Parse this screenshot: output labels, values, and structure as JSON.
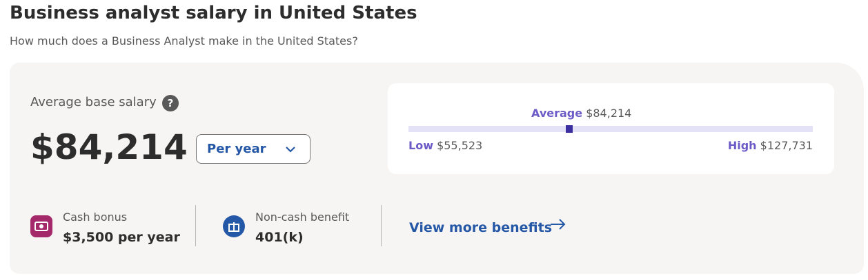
{
  "header": {
    "title": "Business analyst salary in United States",
    "subtitle": "How much does a Business Analyst make in the United States?"
  },
  "salary": {
    "label": "Average base salary",
    "help_icon": "?",
    "amount": "$84,214",
    "period": "Per year"
  },
  "range": {
    "average": {
      "label": "Average",
      "amount": "$84,214"
    },
    "low": {
      "label": "Low",
      "amount": "$55,523"
    },
    "high": {
      "label": "High",
      "amount": "$127,731"
    }
  },
  "benefits": [
    {
      "label": "Cash bonus",
      "value": "$3,500 per year"
    },
    {
      "label": "Non-cash benefit",
      "value": "401(k)"
    }
  ],
  "link": "View more benefits"
}
